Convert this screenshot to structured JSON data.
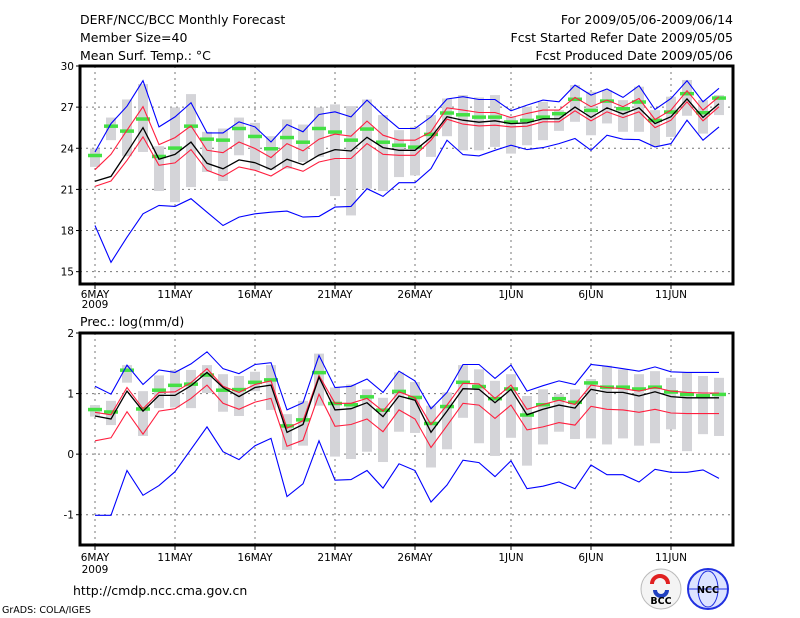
{
  "header": {
    "title": "DERF/NCC/BCC Monthly Forecast",
    "member_size": "Member Size=40",
    "variable": "Mean Surf. Temp.: °C",
    "period": "For 2009/05/06-2009/06/14",
    "started": "Fcst Started Refer Date 2009/05/05",
    "produced": "Fcst Produced Date 2009/05/06"
  },
  "footer": {
    "url": "http://cmdp.ncc.cma.gov.cn",
    "credit": "GrADS: COLA/IGES",
    "logo_bcc": "BCC",
    "logo_ncc": "NCC"
  },
  "colors": {
    "max": "#0000ff",
    "min": "#0000ff",
    "spread": "#ff1f3f",
    "mean": "#000000",
    "obs": "#44e044",
    "bar": "#d4d4d8"
  },
  "chart_data": [
    {
      "type": "line",
      "title": "Mean Surf. Temp.: °C",
      "ylabel": "°C",
      "ylim": [
        14.1,
        30
      ],
      "yticks": [
        15,
        18,
        21,
        24,
        27,
        30
      ],
      "grid": true,
      "xlabels": [
        {
          "day": 0,
          "label": "6MAY",
          "sub": "2009"
        },
        {
          "day": 5,
          "label": "11MAY"
        },
        {
          "day": 10,
          "label": "16MAY"
        },
        {
          "day": 15,
          "label": "21MAY"
        },
        {
          "day": 20,
          "label": "26MAY"
        },
        {
          "day": 26,
          "label": "1JUN"
        },
        {
          "day": 31,
          "label": "6JUN"
        },
        {
          "day": 36,
          "label": "11JUN"
        }
      ],
      "x_days": 40,
      "series": [
        {
          "name": "max",
          "values": [
            23.73,
            25.8,
            27.07,
            28.93,
            25.56,
            26.29,
            27.32,
            25.12,
            25.12,
            25.93,
            25.56,
            24.46,
            25.73,
            25.2,
            26.46,
            26.66,
            26.29,
            27.51,
            26.42,
            25.44,
            25.44,
            26.29,
            27.59,
            27.76,
            27.56,
            27.56,
            26.73,
            27.15,
            27.51,
            27.39,
            28.61,
            27.88,
            28.32,
            27.71,
            28.56,
            26.83,
            27.63,
            28.93,
            27.39,
            28.37
          ]
        },
        {
          "name": "min",
          "values": [
            18.37,
            15.68,
            17.51,
            19.22,
            19.83,
            19.76,
            20.32,
            19.34,
            18.37,
            18.98,
            19.22,
            19.34,
            19.42,
            18.98,
            19.03,
            19.71,
            19.76,
            21.05,
            20.49,
            21.49,
            21.49,
            22.51,
            24.59,
            23.54,
            23.44,
            23.85,
            24.22,
            23.9,
            24.05,
            24.34,
            24.71,
            23.85,
            24.95,
            24.66,
            24.63,
            24.1,
            24.34,
            26.05,
            24.59,
            25.56
          ]
        },
        {
          "name": "upper",
          "values": [
            22.44,
            23.56,
            25.32,
            27.03,
            24.27,
            24.78,
            25.63,
            23.85,
            23.68,
            24.46,
            23.98,
            23.32,
            24.34,
            23.81,
            24.66,
            25.03,
            24.88,
            25.98,
            24.95,
            24.59,
            24.59,
            25.2,
            26.95,
            26.78,
            26.61,
            26.61,
            26.24,
            26.54,
            26.78,
            26.78,
            27.71,
            27.03,
            27.51,
            27.03,
            27.63,
            26.1,
            26.78,
            28.2,
            26.78,
            27.76
          ]
        },
        {
          "name": "lower",
          "values": [
            21.22,
            21.61,
            23.12,
            24.83,
            22.76,
            22.93,
            23.9,
            22.39,
            21.95,
            22.64,
            22.39,
            21.98,
            22.68,
            22.32,
            23.0,
            23.25,
            23.25,
            24.34,
            23.56,
            23.49,
            23.49,
            24.59,
            26.12,
            25.76,
            25.63,
            25.68,
            25.56,
            25.61,
            25.93,
            25.93,
            26.73,
            26.0,
            26.66,
            26.24,
            26.66,
            25.51,
            26.05,
            27.39,
            26.0,
            27.03
          ]
        },
        {
          "name": "mean",
          "values": [
            21.6,
            21.95,
            23.7,
            25.5,
            23.2,
            23.55,
            24.45,
            22.9,
            22.5,
            23.15,
            22.95,
            22.45,
            23.2,
            22.8,
            23.5,
            23.9,
            23.8,
            24.8,
            24.05,
            23.85,
            23.85,
            24.8,
            26.3,
            26.05,
            25.9,
            26.0,
            25.8,
            25.85,
            26.15,
            26.15,
            27.0,
            26.25,
            26.95,
            26.5,
            26.95,
            25.8,
            26.3,
            27.6,
            26.25,
            27.25
          ]
        },
        {
          "name": "obs",
          "values": [
            23.49,
            25.63,
            25.27,
            26.15,
            23.42,
            24.03,
            25.63,
            24.68,
            24.61,
            25.46,
            24.88,
            23.98,
            24.8,
            24.46,
            25.46,
            25.2,
            24.61,
            25.42,
            24.46,
            24.24,
            24.1,
            25.03,
            26.59,
            26.46,
            26.29,
            26.29,
            25.93,
            26.05,
            26.29,
            26.54,
            27.59,
            26.78,
            27.46,
            26.9,
            27.39,
            26.05,
            26.66,
            28.0,
            26.61,
            27.68
          ]
        },
        {
          "name": "bar_high",
          "values": [
            23.98,
            26.24,
            27.56,
            28.68,
            24.15,
            26.98,
            27.95,
            25.2,
            25.44,
            26.24,
            25.85,
            24.88,
            26.1,
            25.73,
            26.98,
            27.2,
            27.07,
            27.56,
            26.42,
            25.32,
            25.56,
            26.42,
            27.63,
            27.88,
            27.71,
            27.88,
            26.34,
            27.03,
            27.39,
            26.78,
            28.61,
            28.12,
            28.24,
            27.51,
            28.49,
            26.78,
            27.76,
            28.98,
            27.51,
            27.88
          ]
        },
        {
          "name": "bar_low",
          "values": [
            22.64,
            24.59,
            23.42,
            23.73,
            20.88,
            20.07,
            21.17,
            22.27,
            21.61,
            23.49,
            22.39,
            22.44,
            22.51,
            23.0,
            23.37,
            20.51,
            19.1,
            21.05,
            20.88,
            21.9,
            22.02,
            23.37,
            24.88,
            23.85,
            23.85,
            24.1,
            23.61,
            24.22,
            24.59,
            25.27,
            25.93,
            24.95,
            25.81,
            25.2,
            25.2,
            24.1,
            24.83,
            26.37,
            25.07,
            26.42
          ]
        }
      ]
    },
    {
      "type": "line",
      "title": "Prec.: log(mm/d)",
      "ylabel": "log(mm/d)",
      "ylim": [
        -1.5,
        2
      ],
      "yticks": [
        -1,
        0,
        1,
        2
      ],
      "grid": true,
      "xlabels": [
        {
          "day": 0,
          "label": "6MAY",
          "sub": "2009"
        },
        {
          "day": 5,
          "label": "11MAY"
        },
        {
          "day": 10,
          "label": "16MAY"
        },
        {
          "day": 15,
          "label": "21MAY"
        },
        {
          "day": 20,
          "label": "26MAY"
        },
        {
          "day": 26,
          "label": "1JUN"
        },
        {
          "day": 31,
          "label": "6JUN"
        },
        {
          "day": 36,
          "label": "11JUN"
        }
      ],
      "x_days": 40,
      "series": [
        {
          "name": "max",
          "values": [
            1.12,
            0.99,
            1.47,
            1.15,
            1.39,
            1.35,
            1.49,
            1.69,
            1.41,
            1.33,
            1.48,
            1.51,
            0.73,
            0.85,
            1.63,
            1.1,
            1.12,
            1.24,
            1.02,
            1.37,
            1.21,
            0.75,
            1.02,
            1.48,
            1.48,
            1.25,
            1.47,
            1.04,
            1.13,
            1.21,
            1.15,
            1.48,
            1.45,
            1.41,
            1.37,
            1.44,
            1.36,
            1.35,
            1.35,
            1.35
          ]
        },
        {
          "name": "min",
          "values": [
            -1.01,
            -1.01,
            -0.27,
            -0.68,
            -0.52,
            -0.29,
            0.08,
            0.45,
            0.04,
            -0.09,
            0.14,
            0.26,
            -0.7,
            -0.49,
            0.22,
            -0.43,
            -0.42,
            -0.27,
            -0.56,
            -0.16,
            -0.27,
            -0.79,
            -0.51,
            -0.1,
            -0.14,
            -0.37,
            -0.11,
            -0.57,
            -0.53,
            -0.46,
            -0.57,
            -0.18,
            -0.34,
            -0.34,
            -0.46,
            -0.25,
            -0.3,
            -0.3,
            -0.26,
            -0.4
          ]
        },
        {
          "name": "upper",
          "values": [
            0.69,
            0.65,
            1.1,
            0.75,
            1.02,
            1.03,
            1.18,
            1.41,
            1.12,
            1.02,
            1.15,
            1.21,
            0.43,
            0.55,
            1.3,
            0.84,
            0.84,
            0.92,
            0.71,
            1.03,
            0.93,
            0.49,
            0.81,
            1.17,
            1.16,
            0.92,
            1.14,
            0.74,
            0.82,
            0.89,
            0.82,
            1.14,
            1.1,
            1.08,
            1.04,
            1.1,
            1.04,
            1.02,
            1.01,
            1.01
          ]
        },
        {
          "name": "lower",
          "values": [
            0.22,
            0.27,
            0.7,
            0.33,
            0.71,
            0.75,
            0.92,
            1.14,
            0.84,
            0.74,
            0.86,
            0.92,
            0.13,
            0.23,
            0.99,
            0.46,
            0.49,
            0.58,
            0.37,
            0.73,
            0.58,
            0.11,
            0.47,
            0.84,
            0.81,
            0.59,
            0.81,
            0.4,
            0.45,
            0.52,
            0.48,
            0.79,
            0.74,
            0.73,
            0.69,
            0.74,
            0.68,
            0.67,
            0.67,
            0.67
          ]
        },
        {
          "name": "mean",
          "values": [
            0.63,
            0.58,
            1.04,
            0.71,
            0.97,
            0.97,
            1.13,
            1.35,
            1.1,
            0.95,
            1.1,
            1.14,
            0.36,
            0.49,
            1.27,
            0.73,
            0.75,
            0.85,
            0.62,
            0.96,
            0.89,
            0.36,
            0.71,
            1.08,
            1.07,
            0.85,
            1.07,
            0.65,
            0.74,
            0.81,
            0.76,
            1.07,
            1.02,
            1.02,
            0.96,
            1.03,
            0.95,
            0.93,
            0.93,
            0.93
          ]
        },
        {
          "name": "obs",
          "values": [
            0.74,
            0.7,
            1.39,
            0.75,
            1.06,
            1.14,
            1.16,
            1.31,
            1.06,
            1.07,
            1.19,
            1.23,
            0.47,
            0.57,
            1.35,
            0.84,
            0.82,
            0.95,
            0.73,
            1.04,
            0.94,
            0.51,
            0.79,
            1.19,
            1.12,
            0.92,
            1.08,
            0.65,
            0.82,
            0.92,
            0.86,
            1.18,
            1.11,
            1.11,
            1.08,
            1.11,
            1.03,
            0.99,
            0.97,
            0.99
          ]
        },
        {
          "name": "bar_high",
          "values": [
            0.81,
            0.88,
            1.47,
            1.04,
            1.3,
            1.39,
            1.39,
            1.47,
            1.32,
            1.29,
            1.36,
            1.47,
            0.66,
            0.88,
            1.66,
            1.1,
            1.15,
            1.07,
            0.93,
            1.35,
            1.19,
            0.8,
            1.02,
            1.47,
            1.4,
            1.21,
            1.32,
            0.96,
            1.07,
            0.99,
            1.07,
            1.24,
            1.46,
            1.4,
            1.32,
            1.37,
            1.26,
            1.35,
            1.29,
            1.26
          ]
        },
        {
          "name": "bar_low",
          "values": [
            0.62,
            0.48,
            1.18,
            0.3,
            0.76,
            0.77,
            0.76,
            1.01,
            0.7,
            0.63,
            1.04,
            0.73,
            0.07,
            0.14,
            0.8,
            -0.04,
            -0.08,
            0.04,
            -0.13,
            0.37,
            0.35,
            -0.22,
            0.08,
            0.6,
            0.18,
            -0.03,
            0.27,
            -0.19,
            0.16,
            0.37,
            0.25,
            0.26,
            0.16,
            0.26,
            0.14,
            0.18,
            0.41,
            0.05,
            0.33,
            0.3
          ]
        }
      ]
    }
  ]
}
